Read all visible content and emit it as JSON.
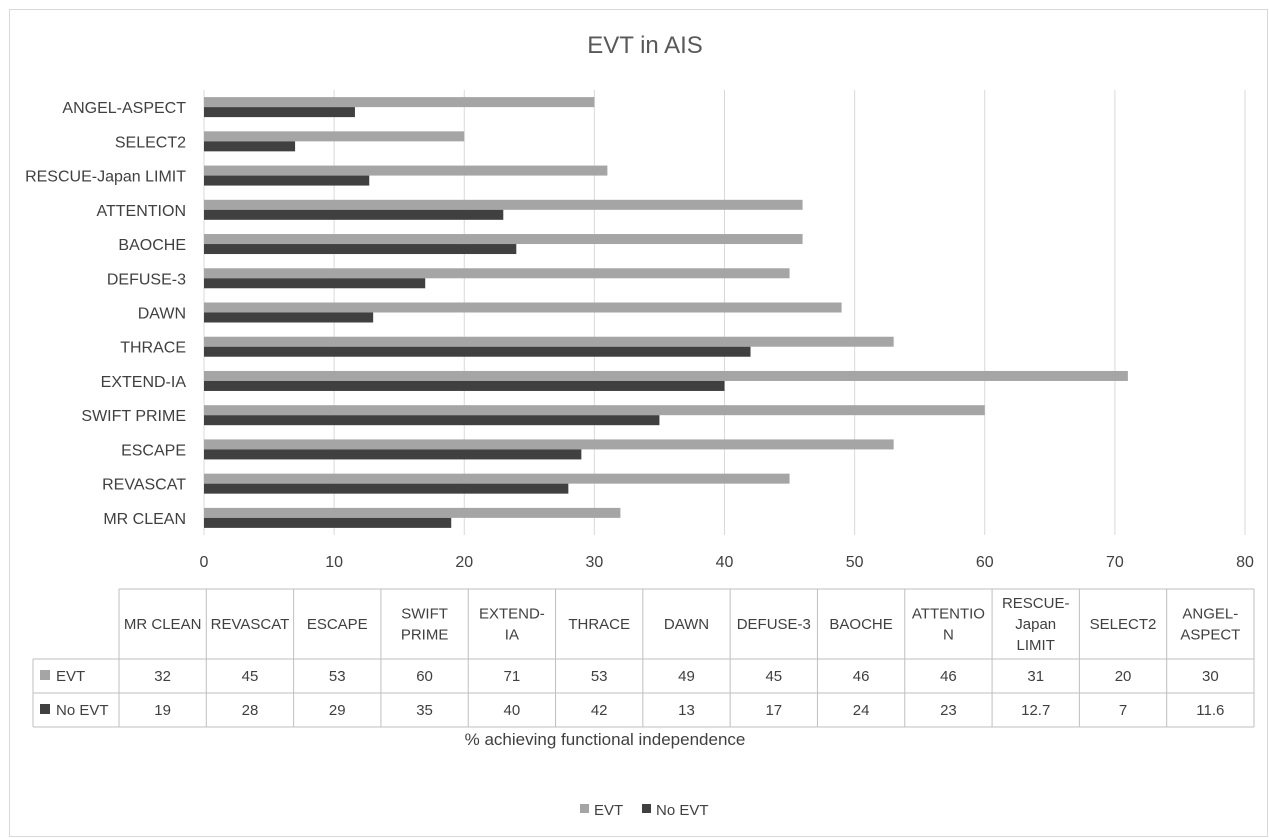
{
  "chart_data": {
    "type": "bar",
    "orientation": "horizontal",
    "title": "EVT in AIS",
    "xlabel": "% achieving functional independence",
    "ylabel": "",
    "xlim": [
      0,
      80
    ],
    "x_ticks": [
      0,
      10,
      20,
      30,
      40,
      50,
      60,
      70,
      80
    ],
    "grid": true,
    "legend_position": "bottom",
    "categories": [
      "MR CLEAN",
      "REVASCAT",
      "ESCAPE",
      "SWIFT PRIME",
      "EXTEND-IA",
      "THRACE",
      "DAWN",
      "DEFUSE-3",
      "BAOCHE",
      "ATTENTION",
      "RESCUE-Japan LIMIT",
      "SELECT2",
      "ANGEL-ASPECT"
    ],
    "table_headers": [
      [
        "MR CLEAN"
      ],
      [
        "REVASCAT"
      ],
      [
        "ESCAPE"
      ],
      [
        "SWIFT",
        "PRIME"
      ],
      [
        "EXTEND-",
        "IA"
      ],
      [
        "THRACE"
      ],
      [
        "DAWN"
      ],
      [
        "DEFUSE-3"
      ],
      [
        "BAOCHE"
      ],
      [
        "ATTENTIO",
        "N"
      ],
      [
        "RESCUE-",
        "Japan",
        "LIMIT"
      ],
      [
        "SELECT2"
      ],
      [
        "ANGEL-",
        "ASPECT"
      ]
    ],
    "series": [
      {
        "name": "EVT",
        "color": "#a5a5a5",
        "values": [
          32,
          45,
          53,
          60,
          71,
          53,
          49,
          45,
          46,
          46,
          31,
          20,
          30
        ]
      },
      {
        "name": "No EVT",
        "color": "#404040",
        "values": [
          19,
          28,
          29,
          35,
          40,
          42,
          13,
          17,
          24,
          23,
          12.7,
          7,
          11.6
        ]
      }
    ]
  }
}
